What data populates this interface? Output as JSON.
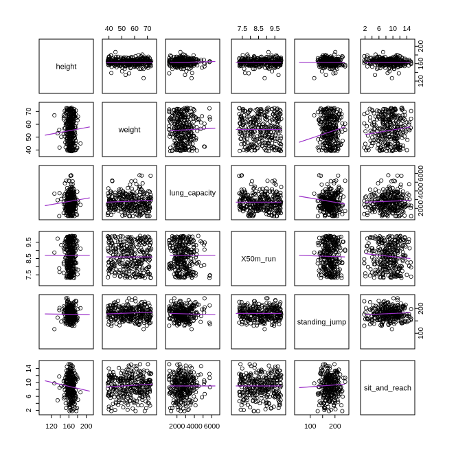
{
  "chart_data": {
    "type": "scatter",
    "subtype": "pairs-matrix",
    "variables": [
      "height",
      "weight",
      "lung_capacity",
      "X50m_run",
      "standing_jump",
      "sit_and_reach"
    ],
    "smoother": "lowess",
    "colors": {
      "points": "#000000",
      "smoother": "#9b30c8",
      "frame": "#000000",
      "background": "#ffffff"
    },
    "axes": {
      "height": {
        "ticks": [
          120,
          140,
          160,
          180,
          200
        ],
        "tick_labels": [
          "120",
          "160",
          "200"
        ],
        "range": [
          98,
          210
        ]
      },
      "weight": {
        "ticks": [
          40,
          50,
          60,
          70
        ],
        "tick_labels": [
          "40",
          "50",
          "60",
          "70"
        ],
        "range": [
          37,
          75
        ]
      },
      "lung_capacity": {
        "ticks": [
          2000,
          3000,
          4000,
          5000,
          6000
        ],
        "tick_labels": [
          "2000",
          "4000",
          "6000"
        ],
        "range": [
          1000,
          6600
        ]
      },
      "X50m_run": {
        "ticks": [
          7.5,
          8.0,
          8.5,
          9.0,
          9.5
        ],
        "tick_labels": [
          "7.5",
          "8.5",
          "9.5"
        ],
        "range": [
          7.0,
          10.0
        ]
      },
      "standing_jump": {
        "ticks": [
          100,
          150,
          200
        ],
        "tick_labels": [
          "100",
          "200"
        ],
        "range": [
          48,
          245
        ]
      },
      "sit_and_reach": {
        "ticks": [
          2,
          4,
          6,
          8,
          10,
          12,
          14
        ],
        "tick_labels": [
          "2",
          "6",
          "10",
          "14"
        ],
        "range": [
          1.5,
          15.5
        ]
      }
    },
    "axis_placement": {
      "top": [
        "weight",
        "X50m_run",
        "sit_and_reach"
      ],
      "bottom": [
        "height",
        "lung_capacity",
        "standing_jump"
      ],
      "left": [
        "weight",
        "X50m_run",
        "sit_and_reach"
      ],
      "right": [
        "height",
        "lung_capacity",
        "standing_jump"
      ]
    },
    "estimated_summary": {
      "height": {
        "center": 163,
        "spread": 9
      },
      "weight": {
        "center": 56,
        "spread": 10
      },
      "lung_capacity": {
        "center": 2700,
        "spread": 900
      },
      "X50m_run": {
        "center": 8.6,
        "spread": 0.75
      },
      "standing_jump": {
        "center": 180,
        "spread": 22
      },
      "sit_and_reach": {
        "center": 9,
        "spread": 3
      }
    },
    "smoother_lines": [
      {
        "x": "height",
        "y": "weight",
        "x_values": [
          105,
          208
        ],
        "y_values": [
          51.5,
          58
        ]
      },
      {
        "x": "height",
        "y": "lung_capacity",
        "x_values": [
          105,
          208
        ],
        "y_values": [
          2300,
          3200
        ]
      },
      {
        "x": "height",
        "y": "X50m_run",
        "x_values": [
          105,
          208
        ],
        "y_values": [
          8.7,
          8.7
        ]
      },
      {
        "x": "height",
        "y": "standing_jump",
        "x_values": [
          105,
          208
        ],
        "y_values": [
          178,
          175
        ]
      },
      {
        "x": "height",
        "y": "sit_and_reach",
        "x_values": [
          105,
          208
        ],
        "y_values": [
          10.5,
          7.5
        ]
      },
      {
        "x": "weight",
        "y": "height",
        "x_values": [
          38,
          74
        ],
        "y_values": [
          162,
          163
        ]
      },
      {
        "x": "weight",
        "y": "lung_capacity",
        "x_values": [
          38,
          74
        ],
        "y_values": [
          2700,
          2900
        ]
      },
      {
        "x": "weight",
        "y": "X50m_run",
        "x_values": [
          38,
          74
        ],
        "y_values": [
          8.6,
          8.6
        ]
      },
      {
        "x": "weight",
        "y": "standing_jump",
        "x_values": [
          38,
          74
        ],
        "y_values": [
          178,
          185
        ]
      },
      {
        "x": "weight",
        "y": "sit_and_reach",
        "x_values": [
          38,
          74
        ],
        "y_values": [
          8.7,
          9.5
        ]
      },
      {
        "x": "lung_capacity",
        "y": "height",
        "x_values": [
          1200,
          6400
        ],
        "y_values": [
          162,
          165
        ]
      },
      {
        "x": "lung_capacity",
        "y": "weight",
        "x_values": [
          1200,
          6400
        ],
        "y_values": [
          55,
          57
        ]
      },
      {
        "x": "lung_capacity",
        "y": "X50m_run",
        "x_values": [
          1200,
          6400
        ],
        "y_values": [
          8.7,
          8.7
        ]
      },
      {
        "x": "lung_capacity",
        "y": "standing_jump",
        "x_values": [
          1200,
          6400
        ],
        "y_values": [
          180,
          175
        ]
      },
      {
        "x": "lung_capacity",
        "y": "sit_and_reach",
        "x_values": [
          1200,
          6400
        ],
        "y_values": [
          9,
          9
        ]
      },
      {
        "x": "X50m_run",
        "y": "height",
        "x_values": [
          7.1,
          9.9
        ],
        "y_values": [
          163,
          163
        ]
      },
      {
        "x": "X50m_run",
        "y": "weight",
        "x_values": [
          7.1,
          9.9
        ],
        "y_values": [
          56,
          56
        ]
      },
      {
        "x": "X50m_run",
        "y": "lung_capacity",
        "x_values": [
          7.1,
          9.9
        ],
        "y_values": [
          2700,
          2700
        ]
      },
      {
        "x": "X50m_run",
        "y": "standing_jump",
        "x_values": [
          7.1,
          9.9
        ],
        "y_values": [
          180,
          180
        ]
      },
      {
        "x": "X50m_run",
        "y": "sit_and_reach",
        "x_values": [
          7.1,
          9.9
        ],
        "y_values": [
          9,
          9
        ]
      },
      {
        "x": "standing_jump",
        "y": "height",
        "x_values": [
          55,
          240
        ],
        "y_values": [
          163,
          163
        ]
      },
      {
        "x": "standing_jump",
        "y": "weight",
        "x_values": [
          55,
          240
        ],
        "y_values": [
          46,
          58
        ]
      },
      {
        "x": "standing_jump",
        "y": "lung_capacity",
        "x_values": [
          55,
          240
        ],
        "y_values": [
          3400,
          2500
        ]
      },
      {
        "x": "standing_jump",
        "y": "X50m_run",
        "x_values": [
          55,
          240
        ],
        "y_values": [
          8.7,
          8.6
        ]
      },
      {
        "x": "standing_jump",
        "y": "sit_and_reach",
        "x_values": [
          55,
          240
        ],
        "y_values": [
          8.5,
          9.5
        ]
      },
      {
        "x": "sit_and_reach",
        "y": "height",
        "x_values": [
          2,
          15
        ],
        "y_values": [
          163,
          163
        ]
      },
      {
        "x": "sit_and_reach",
        "y": "weight",
        "x_values": [
          2,
          15
        ],
        "y_values": [
          52,
          58
        ]
      },
      {
        "x": "sit_and_reach",
        "y": "lung_capacity",
        "x_values": [
          2,
          15
        ],
        "y_values": [
          2700,
          2900
        ]
      },
      {
        "x": "sit_and_reach",
        "y": "X50m_run",
        "x_values": [
          2,
          15
        ],
        "y_values": [
          8.8,
          8.5
        ]
      },
      {
        "x": "sit_and_reach",
        "y": "standing_jump",
        "x_values": [
          2,
          15
        ],
        "y_values": [
          175,
          183
        ]
      }
    ],
    "grid": false,
    "legend": "none",
    "title": ""
  }
}
